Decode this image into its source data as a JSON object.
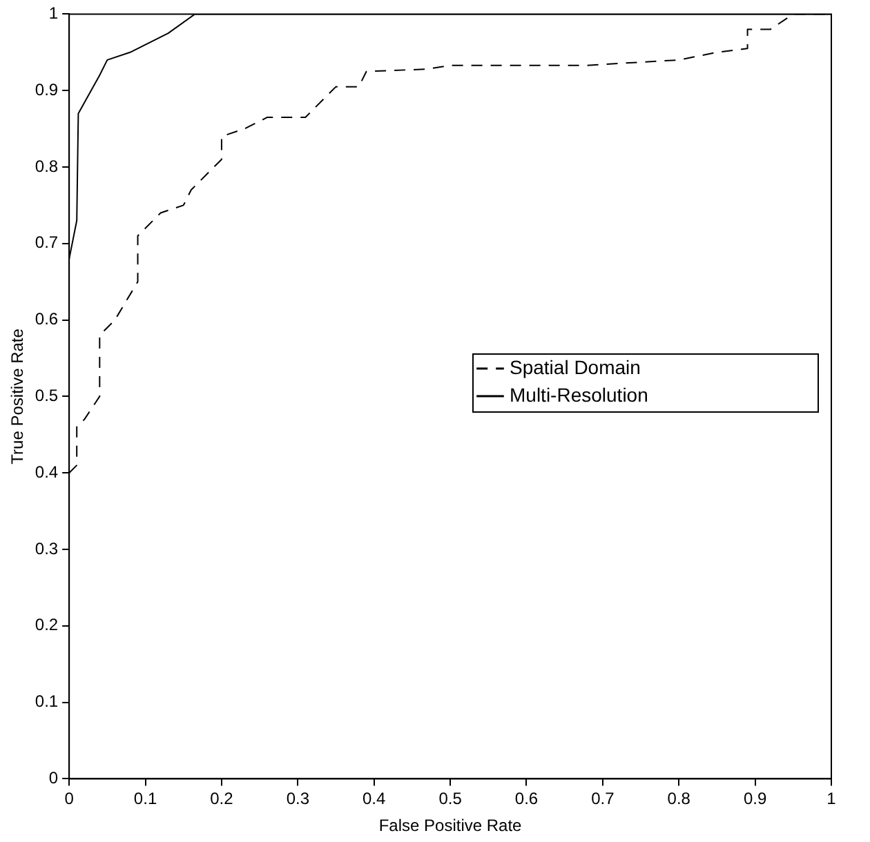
{
  "chart_data": {
    "type": "line",
    "xlabel": "False Positive Rate",
    "ylabel": "True Positive Rate",
    "xlim": [
      0,
      1
    ],
    "ylim": [
      0,
      1
    ],
    "xticks": [
      0,
      0.1,
      0.2,
      0.3,
      0.4,
      0.5,
      0.6,
      0.7,
      0.8,
      0.9,
      1
    ],
    "yticks": [
      0,
      0.1,
      0.2,
      0.3,
      0.4,
      0.5,
      0.6,
      0.7,
      0.8,
      0.9,
      1
    ],
    "grid": false,
    "legend": "right",
    "marker": "none",
    "series": [
      {
        "name": "Spatial Domain",
        "color": "#000000",
        "line_style": "dashed",
        "x": [
          0,
          0.01,
          0.01,
          0.02,
          0.04,
          0.04,
          0.06,
          0.09,
          0.09,
          0.12,
          0.15,
          0.16,
          0.18,
          0.2,
          0.2,
          0.23,
          0.26,
          0.31,
          0.35,
          0.38,
          0.39,
          0.47,
          0.5,
          0.68,
          0.8,
          0.85,
          0.89,
          0.89,
          0.92,
          0.95,
          1
        ],
        "values": [
          0.4,
          0.41,
          0.46,
          0.47,
          0.5,
          0.58,
          0.6,
          0.65,
          0.71,
          0.74,
          0.75,
          0.77,
          0.79,
          0.81,
          0.84,
          0.85,
          0.865,
          0.865,
          0.905,
          0.905,
          0.925,
          0.928,
          0.933,
          0.933,
          0.94,
          0.95,
          0.955,
          0.98,
          0.98,
          1,
          1
        ]
      },
      {
        "name": "Multi-Resolution",
        "color": "#000000",
        "line_style": "solid",
        "x": [
          0,
          0.01,
          0.012,
          0.04,
          0.05,
          0.08,
          0.13,
          0.165,
          1
        ],
        "values": [
          0.68,
          0.73,
          0.87,
          0.92,
          0.94,
          0.95,
          0.975,
          1,
          1
        ]
      }
    ]
  }
}
